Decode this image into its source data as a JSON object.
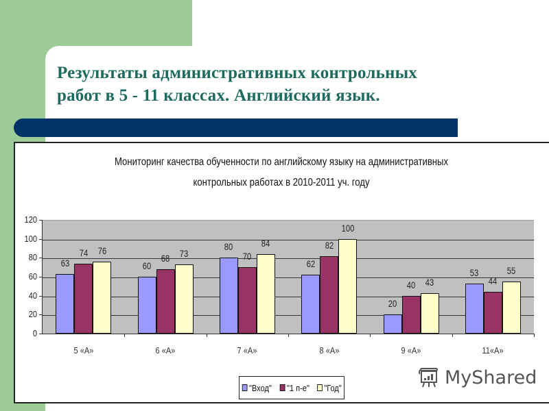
{
  "slide": {
    "title_line1": "Результаты административных контрольных",
    "title_line2": "работ в 5 - 11 классах. Английский  язык.",
    "colors": {
      "green": "#9ccb98",
      "navy_bar": "#003366",
      "title_text": "#1c6b5e"
    }
  },
  "watermark": {
    "text": "MyShared",
    "icon": "presentation-board-icon"
  },
  "chart_data": {
    "type": "bar",
    "title": "Мониторинг качества обученности по английскому языку на административных контрольных работах в 2010-2011 уч. году",
    "title_line1": "Мониторинг качества обученности по английскому языку на административных",
    "title_line2": "контрольных работах в 2010-2011 уч. году",
    "categories": [
      "5 «А»",
      "6 «А»",
      "7 «А»",
      "8 «А»",
      "9 «А»",
      "11«А»"
    ],
    "series": [
      {
        "name": "\"Вход\"",
        "color": "#9999ff",
        "values": [
          63,
          60,
          80,
          62,
          20,
          53
        ]
      },
      {
        "name": "\"1 п-е\"",
        "color": "#993366",
        "values": [
          74,
          68,
          70,
          82,
          40,
          44
        ]
      },
      {
        "name": "\"Год\"",
        "color": "#ffffcc",
        "values": [
          76,
          73,
          84,
          100,
          43,
          55
        ]
      }
    ],
    "xlabel": "",
    "ylabel": "",
    "ylim": [
      0,
      120
    ],
    "yticks": [
      0,
      20,
      40,
      60,
      80,
      100,
      120
    ],
    "grid": true,
    "plot_background": "#c0c0c0",
    "legend_position": "bottom",
    "data_labels": true
  }
}
